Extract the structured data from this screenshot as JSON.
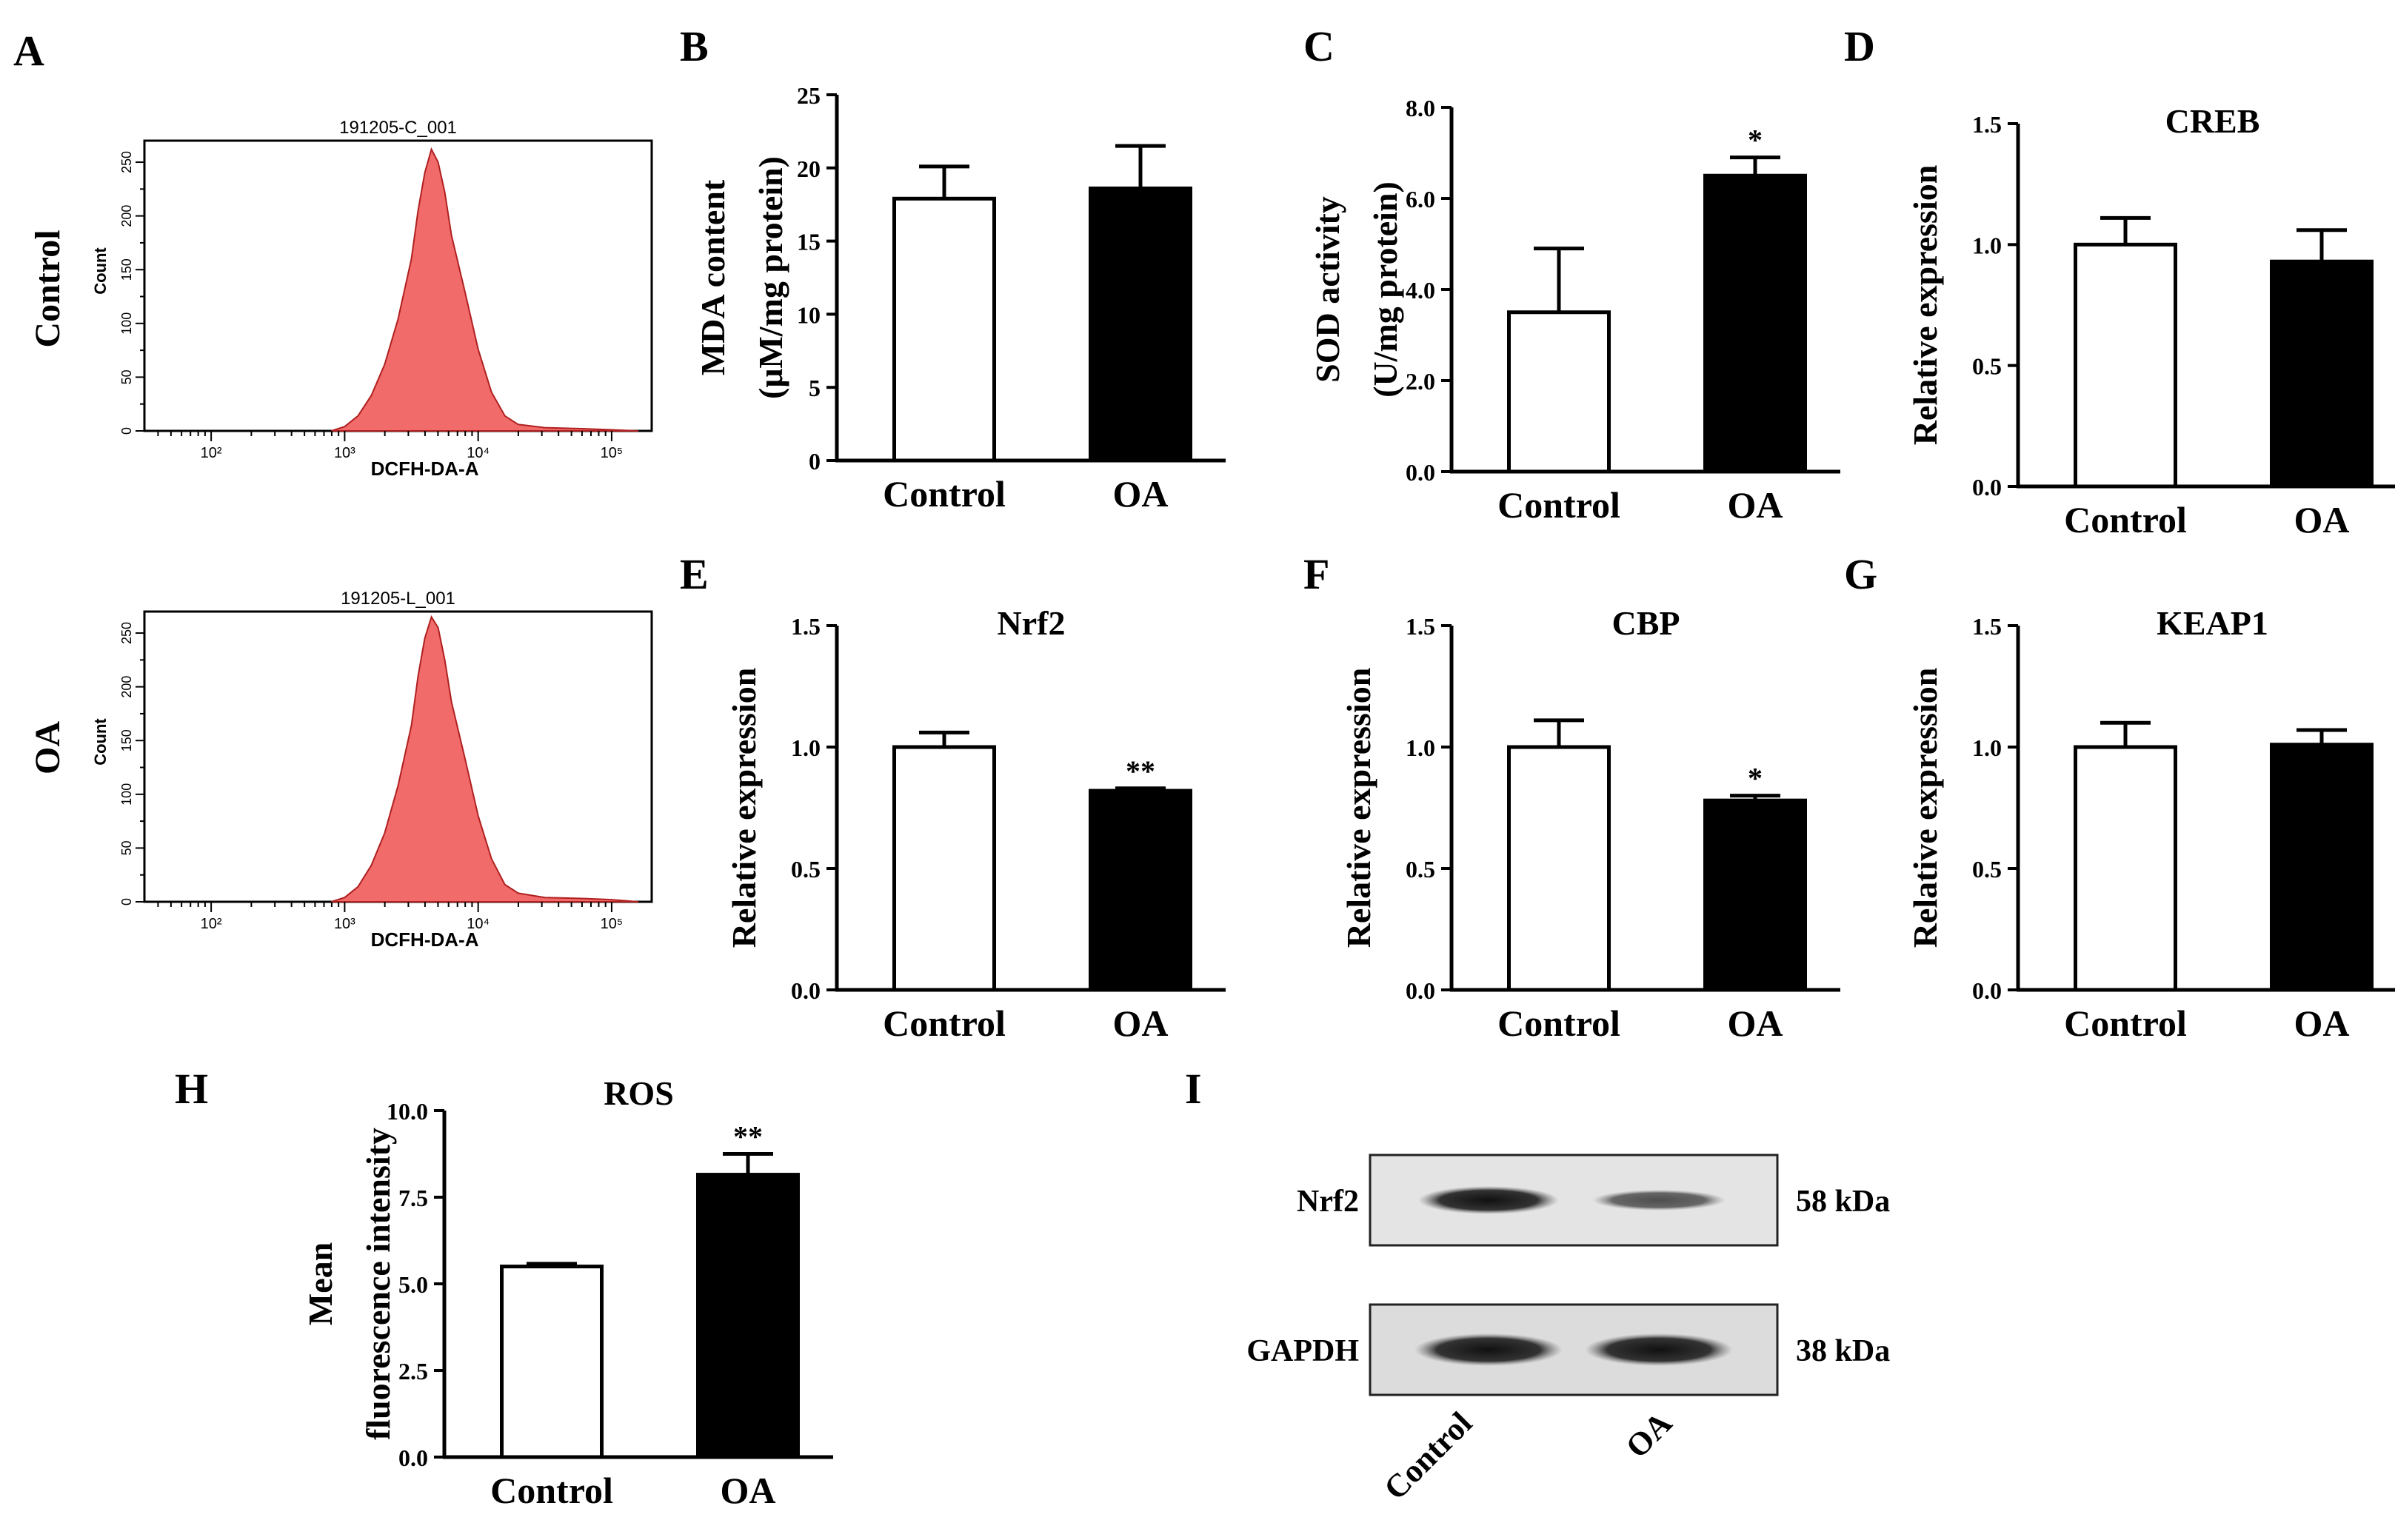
{
  "panels": {
    "A": {
      "letter": "A"
    },
    "B": {
      "letter": "B"
    },
    "C": {
      "letter": "C"
    },
    "D": {
      "letter": "D"
    },
    "E": {
      "letter": "E"
    },
    "F": {
      "letter": "F"
    },
    "G": {
      "letter": "G"
    },
    "H": {
      "letter": "H"
    },
    "I": {
      "letter": "I"
    }
  },
  "flow": {
    "row_labels": [
      "Control",
      "OA"
    ],
    "plots": [
      {
        "title": "191205-C_001",
        "row_label": "Control",
        "xlabel": "DCFH-DA-A",
        "ylabel": "Count",
        "x_ticks": [
          "10²",
          "10³",
          "10⁴",
          "10⁵"
        ],
        "y_ticks": [
          "0",
          "50",
          "100",
          "150",
          "200",
          "250"
        ],
        "fill_color": "#f26b6b",
        "x_log_range": [
          1.5,
          5.3
        ],
        "y_range": [
          0,
          270
        ],
        "histogram": [
          [
            2.9,
            0
          ],
          [
            3.0,
            4
          ],
          [
            3.1,
            14
          ],
          [
            3.2,
            33
          ],
          [
            3.3,
            62
          ],
          [
            3.4,
            104
          ],
          [
            3.5,
            160
          ],
          [
            3.55,
            205
          ],
          [
            3.6,
            240
          ],
          [
            3.65,
            262
          ],
          [
            3.7,
            250
          ],
          [
            3.75,
            222
          ],
          [
            3.8,
            182
          ],
          [
            3.9,
            130
          ],
          [
            4.0,
            76
          ],
          [
            4.1,
            36
          ],
          [
            4.2,
            14
          ],
          [
            4.3,
            6
          ],
          [
            4.5,
            3
          ],
          [
            4.8,
            2
          ],
          [
            5.0,
            1
          ],
          [
            5.2,
            0
          ]
        ]
      },
      {
        "title": "191205-L_001",
        "row_label": "OA",
        "xlabel": "DCFH-DA-A",
        "ylabel": "Count",
        "x_ticks": [
          "10²",
          "10³",
          "10⁴",
          "10⁵"
        ],
        "y_ticks": [
          "0",
          "50",
          "100",
          "150",
          "200",
          "250"
        ],
        "fill_color": "#f26b6b",
        "x_log_range": [
          1.5,
          5.3
        ],
        "y_range": [
          0,
          270
        ],
        "histogram": [
          [
            2.9,
            0
          ],
          [
            3.0,
            4
          ],
          [
            3.1,
            14
          ],
          [
            3.2,
            34
          ],
          [
            3.3,
            64
          ],
          [
            3.4,
            108
          ],
          [
            3.5,
            164
          ],
          [
            3.55,
            210
          ],
          [
            3.6,
            245
          ],
          [
            3.65,
            265
          ],
          [
            3.7,
            255
          ],
          [
            3.75,
            225
          ],
          [
            3.8,
            186
          ],
          [
            3.9,
            134
          ],
          [
            4.0,
            80
          ],
          [
            4.1,
            40
          ],
          [
            4.2,
            16
          ],
          [
            4.3,
            8
          ],
          [
            4.5,
            4
          ],
          [
            4.8,
            3
          ],
          [
            5.0,
            2
          ],
          [
            5.2,
            0
          ]
        ]
      }
    ]
  },
  "chart_data": [
    {
      "id": "B",
      "type": "bar",
      "title": "",
      "ylabel_lines": [
        "MDA content",
        "(μM/mg protein)"
      ],
      "categories": [
        "Control",
        "OA"
      ],
      "values": [
        17.9,
        18.6
      ],
      "errors": [
        2.2,
        2.9
      ],
      "significance": [
        "",
        ""
      ],
      "bar_colors": [
        "#ffffff",
        "#000000"
      ],
      "ylim": [
        0,
        25
      ],
      "yticks": [
        "0",
        "5",
        "10",
        "15",
        "20",
        "25"
      ]
    },
    {
      "id": "C",
      "type": "bar",
      "title": "",
      "ylabel_lines": [
        "SOD activity",
        "(U/mg protein)"
      ],
      "categories": [
        "Control",
        "OA"
      ],
      "values": [
        3.5,
        6.5
      ],
      "errors": [
        1.4,
        0.4
      ],
      "significance": [
        "",
        "*"
      ],
      "bar_colors": [
        "#ffffff",
        "#000000"
      ],
      "ylim": [
        0,
        8
      ],
      "yticks": [
        "0.0",
        "2.0",
        "4.0",
        "6.0",
        "8.0"
      ]
    },
    {
      "id": "D",
      "type": "bar",
      "title": "CREB",
      "ylabel_lines": [
        "Relative expression"
      ],
      "categories": [
        "Control",
        "OA"
      ],
      "values": [
        1.0,
        0.93
      ],
      "errors": [
        0.11,
        0.13
      ],
      "significance": [
        "",
        ""
      ],
      "bar_colors": [
        "#ffffff",
        "#000000"
      ],
      "ylim": [
        0,
        1.5
      ],
      "yticks": [
        "0.0",
        "0.5",
        "1.0",
        "1.5"
      ]
    },
    {
      "id": "E",
      "type": "bar",
      "title": "Nrf2",
      "ylabel_lines": [
        "Relative expression"
      ],
      "categories": [
        "Control",
        "OA"
      ],
      "values": [
        1.0,
        0.82
      ],
      "errors": [
        0.06,
        0.01
      ],
      "significance": [
        "",
        "**"
      ],
      "bar_colors": [
        "#ffffff",
        "#000000"
      ],
      "ylim": [
        0,
        1.5
      ],
      "yticks": [
        "0.0",
        "0.5",
        "1.0",
        "1.5"
      ]
    },
    {
      "id": "F",
      "type": "bar",
      "title": "CBP",
      "ylabel_lines": [
        "Relative expression"
      ],
      "categories": [
        "Control",
        "OA"
      ],
      "values": [
        1.0,
        0.78
      ],
      "errors": [
        0.11,
        0.02
      ],
      "significance": [
        "",
        "*"
      ],
      "bar_colors": [
        "#ffffff",
        "#000000"
      ],
      "ylim": [
        0,
        1.5
      ],
      "yticks": [
        "0.0",
        "0.5",
        "1.0",
        "1.5"
      ]
    },
    {
      "id": "G",
      "type": "bar",
      "title": "KEAP1",
      "ylabel_lines": [
        "Relative expression"
      ],
      "categories": [
        "Control",
        "OA"
      ],
      "values": [
        1.0,
        1.01
      ],
      "errors": [
        0.1,
        0.06
      ],
      "significance": [
        "",
        ""
      ],
      "bar_colors": [
        "#ffffff",
        "#000000"
      ],
      "ylim": [
        0,
        1.5
      ],
      "yticks": [
        "0.0",
        "0.5",
        "1.0",
        "1.5"
      ]
    },
    {
      "id": "H",
      "type": "bar",
      "title": "ROS",
      "ylabel_lines": [
        "Mean",
        "fluorescence  intensity"
      ],
      "categories": [
        "Control",
        "OA"
      ],
      "values": [
        5.5,
        8.15
      ],
      "errors": [
        0.08,
        0.6
      ],
      "significance": [
        "",
        "**"
      ],
      "bar_colors": [
        "#ffffff",
        "#000000"
      ],
      "ylim": [
        0,
        10
      ],
      "yticks": [
        "0.0",
        "2.5",
        "5.0",
        "7.5",
        "10.0"
      ]
    }
  ],
  "blot": {
    "rows": [
      {
        "protein": "Nrf2",
        "size": "58 kDa",
        "band_intensity": [
          1.0,
          0.55
        ]
      },
      {
        "protein": "GAPDH",
        "size": "38 kDa",
        "band_intensity": [
          1.0,
          1.0
        ]
      }
    ],
    "lanes": [
      "Control",
      "OA"
    ]
  }
}
